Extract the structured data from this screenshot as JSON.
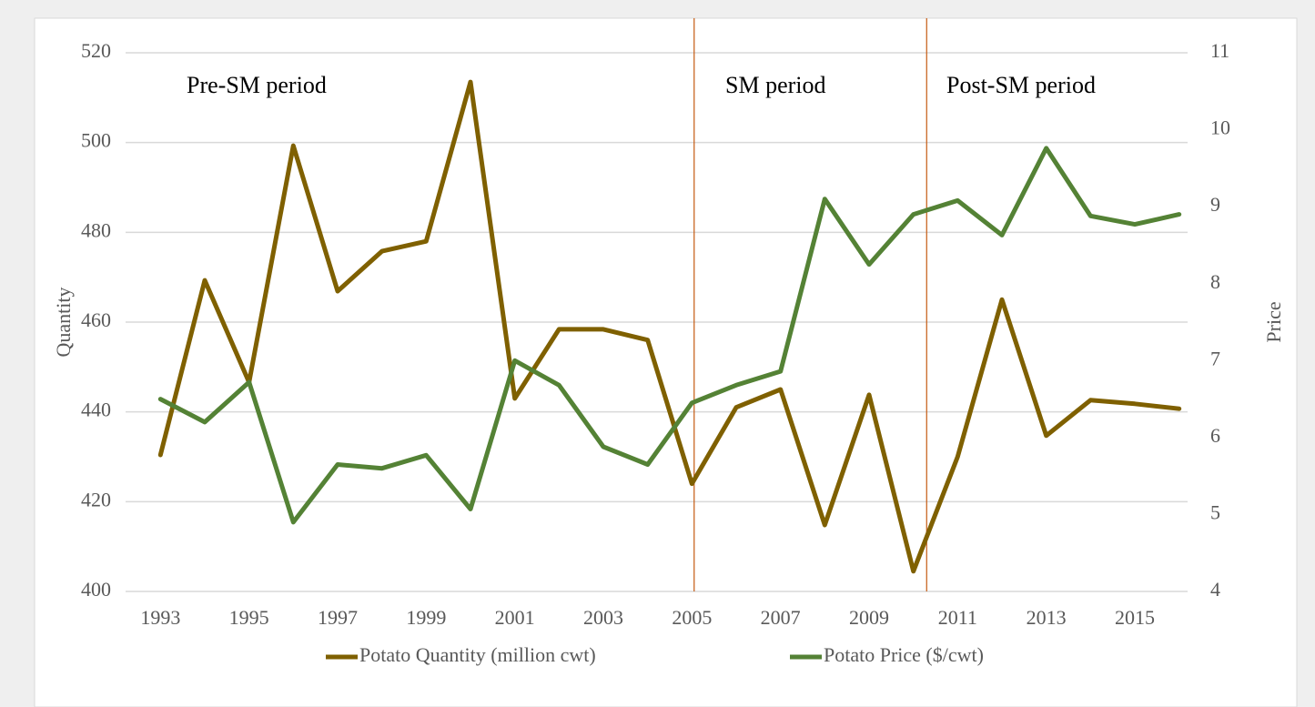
{
  "chart_data": {
    "type": "line",
    "categories": [
      "1993",
      null,
      "1995",
      null,
      "1997",
      null,
      "1999",
      null,
      "2001",
      null,
      "2003",
      null,
      "2005",
      null,
      "2007",
      null,
      "2009",
      null,
      "2011",
      null,
      "2013",
      null,
      "2015",
      null
    ],
    "series": [
      {
        "name": "Potato Quantity (million cwt)",
        "color": "#7f6000",
        "axis": "y",
        "values": [
          430.4,
          469.3,
          446.6,
          499.3,
          466.9,
          475.8,
          478,
          513.5,
          443,
          458.4,
          458.4,
          456,
          424,
          441,
          445,
          414.8,
          443.8,
          404.5,
          430,
          465,
          434.7,
          442.6,
          441.8,
          440.7
        ]
      },
      {
        "name": "Potato Price ($/cwt)",
        "color": "#548235",
        "axis": "y2",
        "values": [
          6.5,
          6.2,
          6.72,
          4.9,
          5.65,
          5.6,
          5.77,
          5.07,
          7.0,
          6.68,
          5.88,
          5.65,
          6.45,
          6.68,
          6.86,
          9.1,
          8.25,
          8.9,
          9.08,
          8.63,
          9.76,
          8.88,
          8.77,
          8.9
        ]
      }
    ],
    "ylabel": "Quantity",
    "y2label": "Price",
    "ylim": [
      400,
      520
    ],
    "yticks": [
      400,
      420,
      440,
      460,
      480,
      500,
      520
    ],
    "y2lim": [
      4,
      11
    ],
    "y2ticks": [
      4,
      5,
      6,
      7,
      8,
      9,
      10,
      11
    ],
    "grid": true,
    "legend": "bottom",
    "dividers": {
      "color": "#c55a11",
      "positions": [
        12.05,
        17.3
      ]
    },
    "annotations": [
      "Pre-SM period",
      "SM period",
      "Post-SM period"
    ]
  }
}
